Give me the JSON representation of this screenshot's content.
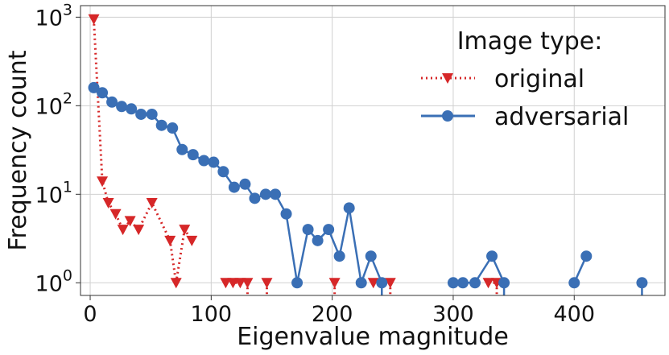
{
  "chart_data": {
    "type": "line",
    "title": "",
    "xlabel": "Eigenvalue magnitude",
    "ylabel": "Frequency count",
    "y_scale": "log",
    "xlim": [
      -8,
      475
    ],
    "ylim": [
      0.72,
      1350
    ],
    "x_ticks": [
      {
        "value": 0,
        "label": "0"
      },
      {
        "value": 100,
        "label": "100"
      },
      {
        "value": 200,
        "label": "200"
      },
      {
        "value": 300,
        "label": "300"
      },
      {
        "value": 400,
        "label": "400"
      }
    ],
    "y_ticks": [
      {
        "value": 1,
        "base": "10",
        "exp": "0"
      },
      {
        "value": 10,
        "base": "10",
        "exp": "1"
      },
      {
        "value": 100,
        "base": "10",
        "exp": "2"
      },
      {
        "value": 1000,
        "base": "10",
        "exp": "3"
      }
    ],
    "grid": true,
    "legend": {
      "title": "Image type:",
      "placement": "top-right"
    },
    "series": [
      {
        "name": "original",
        "color": "#d62728",
        "marker": "triangle-down",
        "linestyle": "dotted",
        "points": [
          [
            3,
            950
          ],
          [
            10,
            14
          ],
          [
            15,
            8
          ],
          [
            21,
            6
          ],
          [
            27,
            4
          ],
          [
            33,
            5
          ],
          [
            40,
            4
          ],
          [
            51,
            8
          ],
          [
            66,
            3
          ],
          [
            71,
            1
          ],
          [
            78,
            4
          ],
          [
            84,
            3
          ],
          [
            112,
            1
          ],
          [
            118,
            1
          ],
          [
            124,
            1
          ],
          [
            130,
            1
          ],
          [
            146,
            1
          ],
          [
            202,
            1
          ],
          [
            234,
            1
          ],
          [
            248,
            1
          ],
          [
            329,
            1
          ],
          [
            336,
            1
          ]
        ]
      },
      {
        "name": "adversarial",
        "color": "#3a6fb5",
        "marker": "circle",
        "linestyle": "solid",
        "points": [
          [
            3,
            160
          ],
          [
            10,
            140
          ],
          [
            18,
            110
          ],
          [
            26,
            98
          ],
          [
            34,
            92
          ],
          [
            42,
            80
          ],
          [
            51,
            80
          ],
          [
            59,
            60
          ],
          [
            68,
            56
          ],
          [
            76,
            32
          ],
          [
            85,
            28
          ],
          [
            94,
            24
          ],
          [
            102,
            23
          ],
          [
            110,
            18
          ],
          [
            119,
            12
          ],
          [
            128,
            13
          ],
          [
            136,
            9
          ],
          [
            145,
            10
          ],
          [
            153,
            10
          ],
          [
            162,
            6
          ],
          [
            171,
            1
          ],
          [
            180,
            4
          ],
          [
            188,
            3
          ],
          [
            197,
            4
          ],
          [
            206,
            2
          ],
          [
            214,
            7
          ],
          [
            224,
            1
          ],
          [
            232,
            2
          ],
          [
            241,
            1
          ],
          [
            300,
            1
          ],
          [
            308,
            1
          ],
          [
            318,
            1
          ],
          [
            332,
            2
          ],
          [
            342,
            1
          ],
          [
            400,
            1
          ],
          [
            410,
            2
          ],
          [
            456,
            1
          ]
        ]
      }
    ]
  }
}
